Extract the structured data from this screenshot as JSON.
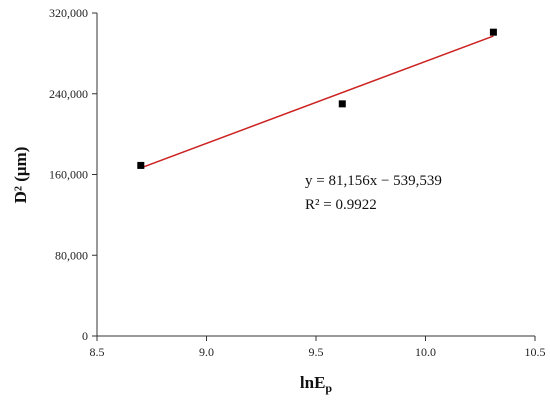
{
  "chart_data": {
    "type": "scatter",
    "xlabel": "lnE",
    "xlabel_sub": "p",
    "ylabel": "D² (μm)",
    "xlim": [
      8.5,
      10.5
    ],
    "ylim": [
      0,
      320000
    ],
    "x_ticks": [
      8.5,
      9.0,
      9.5,
      10.0,
      10.5
    ],
    "x_tick_labels": [
      "8.5",
      "9.0",
      "9.5",
      "10.0",
      "10.5"
    ],
    "y_ticks": [
      0,
      80000,
      160000,
      240000,
      320000
    ],
    "y_tick_labels": [
      "0",
      "80,000",
      "160,000",
      "240,000",
      "320,000"
    ],
    "points": [
      {
        "x": 8.7,
        "y": 169000
      },
      {
        "x": 9.62,
        "y": 230000
      },
      {
        "x": 10.31,
        "y": 301000
      }
    ],
    "fit": {
      "slope": 81156,
      "intercept": -539539,
      "x_start": 8.7,
      "x_end": 10.31,
      "color": "#cc2222"
    },
    "marker_color": "#000000",
    "equation": "y = 81,156x − 539,539",
    "r2": "R² = 0.9922",
    "grid": false,
    "legend": "none"
  }
}
